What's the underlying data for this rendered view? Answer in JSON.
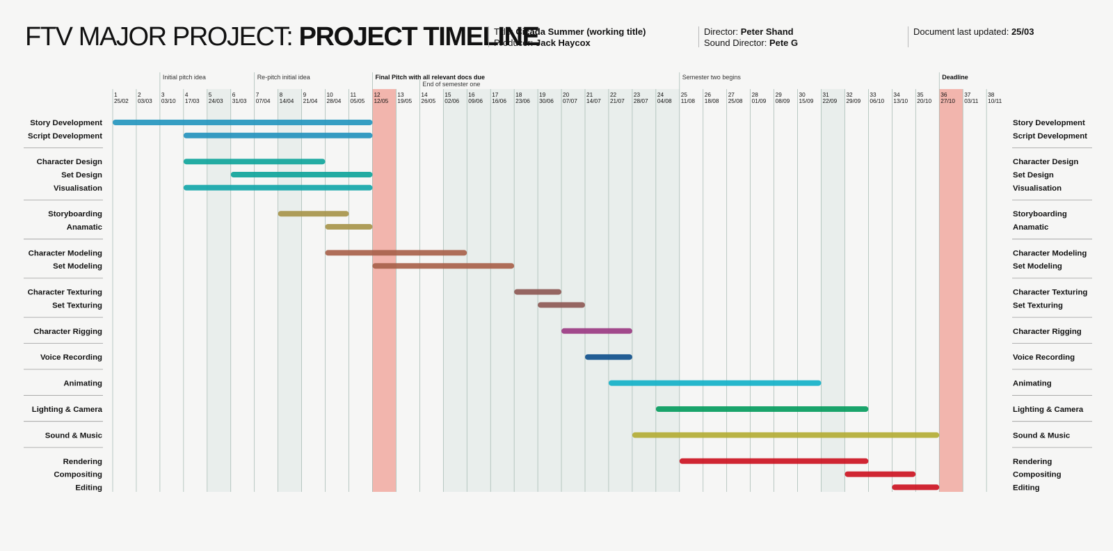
{
  "header": {
    "title_light": "FTV MAJOR PROJECT:",
    "title_bold": "PROJECT TIMELINE",
    "title_label": "Title:",
    "title_value": "Cicada Summer (working title)",
    "producer_label": "Producer:",
    "producer_value": "Jack Haycox",
    "director_label": "Director:",
    "director_value": "Peter Shand",
    "sound_director_label": "Sound Director:",
    "sound_director_value": "Pete G",
    "updated_label": "Document last updated:",
    "updated_value": "25/03"
  },
  "colors": {
    "shade": "#e9eeec",
    "highlight": "#f2b5ad",
    "gridline": "#9fb5ad"
  },
  "chart_data": {
    "type": "gantt",
    "title": "PROJECT TIMELINE",
    "weeks": [
      {
        "n": "1",
        "d": "25/02"
      },
      {
        "n": "2",
        "d": "03/03"
      },
      {
        "n": "3",
        "d": "03/10"
      },
      {
        "n": "4",
        "d": "17/03"
      },
      {
        "n": "5",
        "d": "24/03"
      },
      {
        "n": "6",
        "d": "31/03"
      },
      {
        "n": "7",
        "d": "07/04"
      },
      {
        "n": "8",
        "d": "14/04"
      },
      {
        "n": "9",
        "d": "21/04"
      },
      {
        "n": "10",
        "d": "28/04"
      },
      {
        "n": "11",
        "d": "05/05"
      },
      {
        "n": "12",
        "d": "12/05"
      },
      {
        "n": "13",
        "d": "19/05"
      },
      {
        "n": "14",
        "d": "26/05"
      },
      {
        "n": "15",
        "d": "02/06"
      },
      {
        "n": "16",
        "d": "09/06"
      },
      {
        "n": "17",
        "d": "16/06"
      },
      {
        "n": "18",
        "d": "23/06"
      },
      {
        "n": "19",
        "d": "30/06"
      },
      {
        "n": "20",
        "d": "07/07"
      },
      {
        "n": "21",
        "d": "14/07"
      },
      {
        "n": "22",
        "d": "21/07"
      },
      {
        "n": "23",
        "d": "28/07"
      },
      {
        "n": "24",
        "d": "04/08"
      },
      {
        "n": "25",
        "d": "11/08"
      },
      {
        "n": "26",
        "d": "18/08"
      },
      {
        "n": "27",
        "d": "25/08"
      },
      {
        "n": "28",
        "d": "01/09"
      },
      {
        "n": "29",
        "d": "08/09"
      },
      {
        "n": "30",
        "d": "15/09"
      },
      {
        "n": "31",
        "d": "22/09"
      },
      {
        "n": "32",
        "d": "29/09"
      },
      {
        "n": "33",
        "d": "06/10"
      },
      {
        "n": "34",
        "d": "13/10"
      },
      {
        "n": "35",
        "d": "20/10"
      },
      {
        "n": "36",
        "d": "27/10"
      },
      {
        "n": "37",
        "d": "03/11"
      },
      {
        "n": "38",
        "d": "10/11"
      }
    ],
    "shaded_weeks": [
      5,
      8,
      15,
      16,
      17,
      18,
      19,
      20,
      21,
      22,
      23,
      24,
      31
    ],
    "highlighted_weeks": [
      12,
      36
    ],
    "milestones": [
      {
        "week": 3,
        "label": "Initial pitch idea",
        "bold": false
      },
      {
        "week": 7,
        "label": "Re-pitch initial idea",
        "bold": false
      },
      {
        "week": 12,
        "label": "Final Pitch with all relevant docs due",
        "bold": true
      },
      {
        "week": 14,
        "label": "End of semester one",
        "bold": false,
        "sub": true
      },
      {
        "week": 25,
        "label": "Semester two begins",
        "bold": false
      },
      {
        "week": 36,
        "label": "Deadline",
        "bold": true
      }
    ],
    "groups": [
      {
        "tasks": [
          {
            "name": "Story Development",
            "start": 1,
            "end": 12,
            "color": "#2596be"
          },
          {
            "name": "Script Development",
            "start": 4,
            "end": 12,
            "color": "#2592bd"
          }
        ]
      },
      {
        "tasks": [
          {
            "name": "Character Design",
            "start": 4,
            "end": 10,
            "color": "#11a59b"
          },
          {
            "name": "Set Design",
            "start": 6,
            "end": 12,
            "color": "#0fa49a"
          },
          {
            "name": "Visualisation",
            "start": 4,
            "end": 12,
            "color": "#13a6a9"
          }
        ]
      },
      {
        "tasks": [
          {
            "name": "Storyboarding",
            "start": 8,
            "end": 11,
            "color": "#a7954b"
          },
          {
            "name": "Anamatic",
            "start": 10,
            "end": 12,
            "color": "#a7954b"
          }
        ]
      },
      {
        "tasks": [
          {
            "name": "Character Modeling",
            "start": 10,
            "end": 16,
            "color": "#a8624b"
          },
          {
            "name": "Set Modeling",
            "start": 12,
            "end": 18,
            "color": "#a8624b"
          }
        ]
      },
      {
        "tasks": [
          {
            "name": "Character Texturing",
            "start": 18,
            "end": 20,
            "color": "#8e5a56"
          },
          {
            "name": "Set Texturing",
            "start": 19,
            "end": 21,
            "color": "#8e5a56"
          }
        ]
      },
      {
        "tasks": [
          {
            "name": "Character Rigging",
            "start": 20,
            "end": 23,
            "color": "#9b3b83"
          }
        ]
      },
      {
        "tasks": [
          {
            "name": "Voice Recording",
            "start": 21,
            "end": 23,
            "color": "#10508c"
          }
        ]
      },
      {
        "tasks": [
          {
            "name": "Animating",
            "start": 22,
            "end": 31,
            "color": "#13b1c8"
          }
        ]
      },
      {
        "tasks": [
          {
            "name": "Lighting & Camera",
            "start": 24,
            "end": 33,
            "color": "#069c5e"
          }
        ]
      },
      {
        "tasks": [
          {
            "name": "Sound & Music",
            "start": 23,
            "end": 36,
            "color": "#b3ac35"
          }
        ]
      },
      {
        "tasks": [
          {
            "name": "Rendering",
            "start": 25,
            "end": 33,
            "color": "#cc1422"
          },
          {
            "name": "Compositing",
            "start": 32,
            "end": 35,
            "color": "#cc1422"
          },
          {
            "name": "Editing",
            "start": 34,
            "end": 36,
            "color": "#cc1422"
          }
        ]
      }
    ]
  }
}
